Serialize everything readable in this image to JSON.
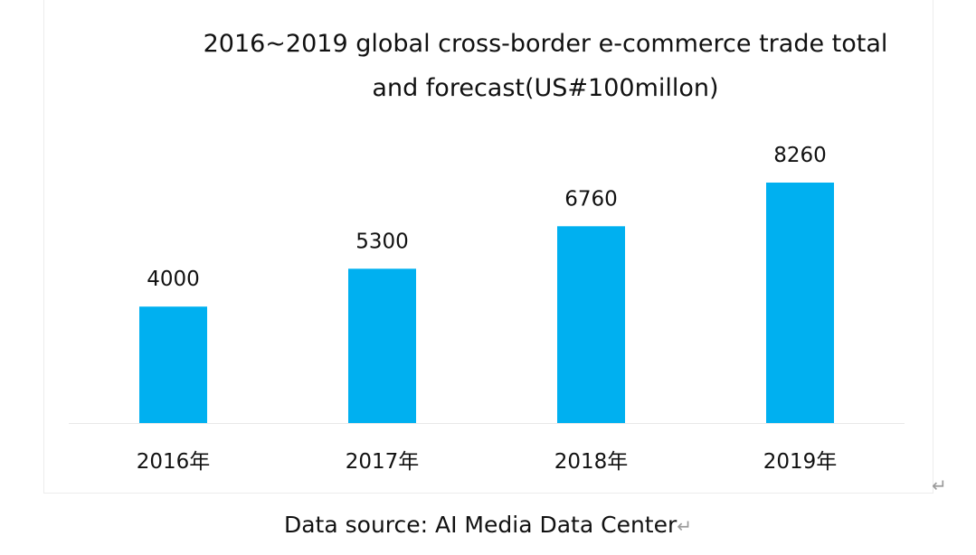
{
  "chart_data": {
    "type": "bar",
    "title_lines": [
      "2016~2019 global cross-border e-commerce trade total",
      "and forecast(US#100millon)"
    ],
    "categories": [
      "2016年",
      "2017年",
      "2018年",
      "2019年"
    ],
    "values": [
      4000,
      5300,
      6760,
      8260
    ],
    "data_labels": [
      "4000",
      "5300",
      "6760",
      "8260"
    ],
    "xlabel": "",
    "ylabel": "",
    "ylim": [
      0,
      8260
    ],
    "grid": false,
    "legend": "none",
    "bar_color": "#00B0F0",
    "axis_color": "#e8e8e8"
  },
  "source": {
    "text": "Data source: AI Media Data Center"
  },
  "return_mark": "↵"
}
